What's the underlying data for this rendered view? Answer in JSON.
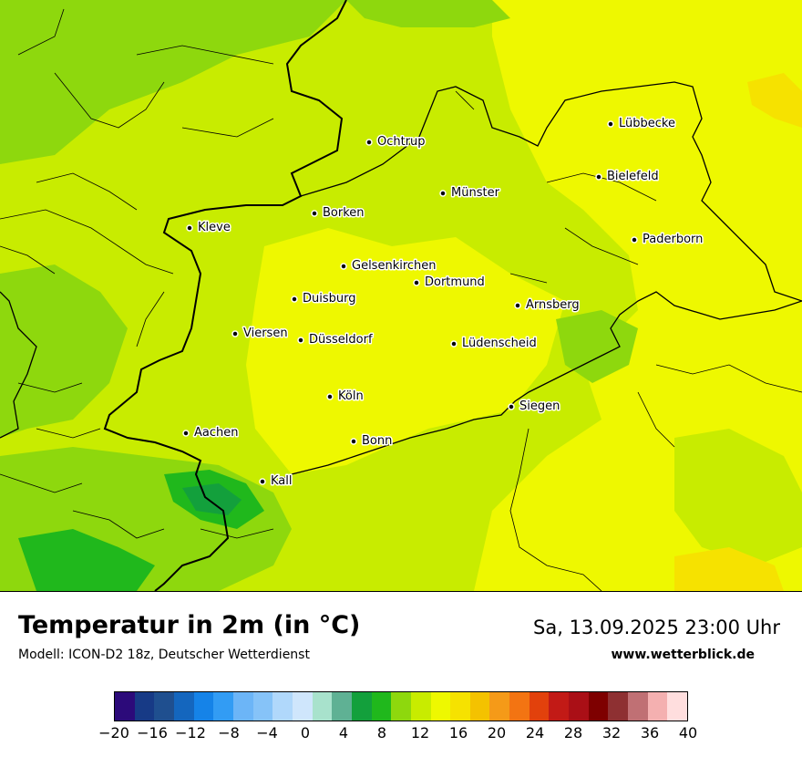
{
  "map": {
    "title": "Temperatur in 2m (in °C)",
    "subtitle": "Modell: ICON-D2 18z, Deutscher Wetterdienst",
    "datetime": "Sa, 13.09.2025 23:00 Uhr",
    "website": "www.wetterblick.de",
    "cities": [
      {
        "name": "Lübbecke"
      },
      {
        "name": "Ochtrup"
      },
      {
        "name": "Bielefeld"
      },
      {
        "name": "Münster"
      },
      {
        "name": "Borken"
      },
      {
        "name": "Kleve"
      },
      {
        "name": "Paderborn"
      },
      {
        "name": "Gelsenkirchen"
      },
      {
        "name": "Dortmund"
      },
      {
        "name": "Duisburg"
      },
      {
        "name": "Arnsberg"
      },
      {
        "name": "Viersen"
      },
      {
        "name": "Düsseldorf"
      },
      {
        "name": "Lüdenscheid"
      },
      {
        "name": "Köln"
      },
      {
        "name": "Siegen"
      },
      {
        "name": "Aachen"
      },
      {
        "name": "Bonn"
      },
      {
        "name": "Kall"
      }
    ]
  },
  "legend": {
    "unit": "°C",
    "colors": [
      "#2c0a7a",
      "#173a86",
      "#1f4f8f",
      "#1466be",
      "#1583e8",
      "#329cf4",
      "#6cb5f7",
      "#86c3f8",
      "#b0d8fb",
      "#cfe6fc",
      "#a8e2cc",
      "#5fb194",
      "#13a03c",
      "#20b81c",
      "#8ed80d",
      "#c8ec00",
      "#eef800",
      "#f6e200",
      "#f4c200",
      "#f59a18",
      "#f37412",
      "#e2410c",
      "#c21a16",
      "#aa0f16",
      "#7e0000",
      "#8e3032",
      "#c07074",
      "#f4b0b0",
      "#ffdede"
    ],
    "ticks": [
      "−20",
      "−16",
      "−12",
      "−8",
      "−4",
      "0",
      "4",
      "8",
      "12",
      "16",
      "20",
      "24",
      "28",
      "32",
      "36",
      "40"
    ]
  }
}
